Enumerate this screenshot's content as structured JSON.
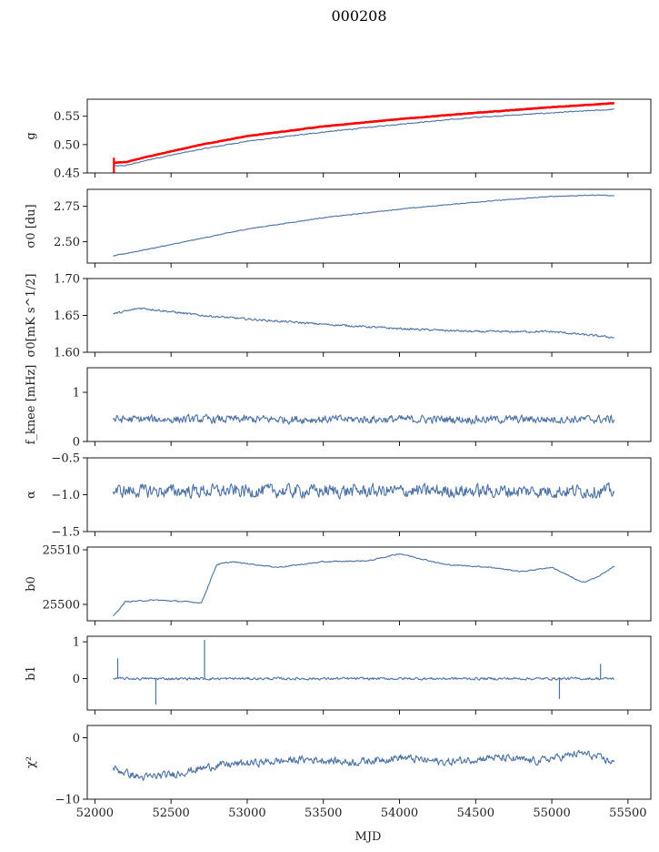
{
  "chart_data": {
    "type": "line",
    "title": "000208",
    "xlabel": "MJD",
    "xlim": [
      51950,
      55650
    ],
    "x_ticks": [
      52000,
      52500,
      53000,
      53500,
      54000,
      54500,
      55000,
      55500
    ],
    "x_start": 52120,
    "x_end": 55410,
    "colors": {
      "main": "#4c72a4",
      "overlay": "#ff0000"
    },
    "panels": [
      {
        "id": "g",
        "ylabel": "g",
        "ylim": [
          0.45,
          0.58
        ],
        "yticks": [
          "0.45",
          "0.50",
          "0.55"
        ],
        "y_tick_values": [
          0.45,
          0.5,
          0.55
        ],
        "series": [
          {
            "role": "main",
            "x": [
              52120,
              52200,
              52400,
              52700,
              53000,
              53500,
              54000,
              54500,
              55000,
              55400
            ],
            "y": [
              0.462,
              0.463,
              0.476,
              0.492,
              0.506,
              0.522,
              0.536,
              0.548,
              0.556,
              0.562
            ]
          },
          {
            "role": "overlay",
            "x": [
              52120,
              52200,
              52400,
              52700,
              53000,
              53500,
              54000,
              54500,
              55000,
              55410
            ],
            "y": [
              0.468,
              0.469,
              0.482,
              0.5,
              0.515,
              0.532,
              0.545,
              0.556,
              0.566,
              0.573
            ]
          }
        ],
        "noise": 0.0012,
        "spike": {
          "x": 52125,
          "low": 0.45,
          "high": 0.477
        }
      },
      {
        "id": "sigma0_du",
        "ylabel": "σ0 [du]",
        "ylim": [
          2.35,
          2.87
        ],
        "yticks": [
          "2.50",
          "2.75"
        ],
        "y_tick_values": [
          2.5,
          2.75
        ],
        "series": [
          {
            "role": "main",
            "x": [
              52120,
              52500,
              53000,
              53500,
              54000,
              54500,
              55000,
              55300,
              55410
            ],
            "y": [
              2.4,
              2.48,
              2.59,
              2.67,
              2.73,
              2.78,
              2.82,
              2.83,
              2.825
            ]
          }
        ],
        "noise": 0.004
      },
      {
        "id": "sigma0_mk",
        "ylabel": "σ0[mK s^1/2]",
        "ylim": [
          1.6,
          1.7
        ],
        "yticks": [
          "1.60",
          "1.65",
          "1.70"
        ],
        "y_tick_values": [
          1.6,
          1.65,
          1.7
        ],
        "series": [
          {
            "role": "main",
            "x": [
              52120,
              52300,
              52700,
              53000,
              53500,
              54000,
              54500,
              55000,
              55410
            ],
            "y": [
              1.652,
              1.66,
              1.65,
              1.645,
              1.638,
              1.632,
              1.628,
              1.628,
              1.62
            ]
          }
        ],
        "noise": 0.002
      },
      {
        "id": "fknee",
        "ylabel": "f_knee [mHz]",
        "ylim": [
          0,
          1.5
        ],
        "yticks": [
          "0",
          "1"
        ],
        "y_tick_values": [
          0,
          1
        ],
        "series": [
          {
            "role": "main",
            "x": [
              52120,
              55410
            ],
            "y": [
              0.45,
              0.45
            ]
          }
        ],
        "noise": 0.12
      },
      {
        "id": "alpha",
        "ylabel": "α",
        "ylim": [
          -1.5,
          -0.5
        ],
        "yticks": [
          "−1.5",
          "−1.0",
          "−0.5"
        ],
        "y_tick_values": [
          -1.5,
          -1.0,
          -0.5
        ],
        "series": [
          {
            "role": "main",
            "x": [
              52120,
              55410
            ],
            "y": [
              -0.95,
              -0.95
            ]
          }
        ],
        "noise": 0.13
      },
      {
        "id": "b0",
        "ylabel": "b0",
        "ylim": [
          25497,
          25510.5
        ],
        "yticks": [
          "25500",
          "25510"
        ],
        "y_tick_values": [
          25500,
          25510
        ],
        "series": [
          {
            "role": "main",
            "x": [
              52120,
              52200,
              52400,
              52600,
              52700,
              52800,
              52900,
              53200,
              53500,
              53800,
              54000,
              54300,
              54600,
              54800,
              55000,
              55200,
              55300,
              55410
            ],
            "y": [
              25497.8,
              25500.5,
              25500.8,
              25500.5,
              25500.3,
              25507.3,
              25507.8,
              25506.8,
              25507.8,
              25508,
              25509.3,
              25507.3,
              25506.8,
              25506,
              25506.8,
              25504,
              25505,
              25507
            ]
          }
        ],
        "noise": 0.15
      },
      {
        "id": "b1",
        "ylabel": "b1",
        "ylim": [
          -0.85,
          1.15
        ],
        "yticks": [
          "0",
          "1"
        ],
        "y_tick_values": [
          0,
          1
        ],
        "series": [
          {
            "role": "main",
            "x": [
              52120,
              55410
            ],
            "y": [
              0,
              0
            ]
          }
        ],
        "noise": 0.05,
        "spikes": [
          {
            "x": 52150,
            "y": 0.55
          },
          {
            "x": 52400,
            "y": -0.7
          },
          {
            "x": 52720,
            "y": 1.05
          },
          {
            "x": 55050,
            "y": -0.55
          },
          {
            "x": 55320,
            "y": 0.4
          }
        ]
      },
      {
        "id": "chi2",
        "ylabel": "χ²",
        "ylim": [
          -10,
          2
        ],
        "yticks": [
          "−10",
          "0"
        ],
        "y_tick_values": [
          -10,
          0
        ],
        "series": [
          {
            "role": "main",
            "x": [
              52120,
              52300,
              52500,
              52800,
              53100,
              53400,
              53700,
              54000,
              54300,
              54600,
              54900,
              55200,
              55410
            ],
            "y": [
              -5,
              -6.5,
              -6,
              -4.5,
              -4,
              -3.5,
              -4,
              -3.2,
              -4,
              -3.2,
              -3.8,
              -2.5,
              -4
            ]
          }
        ],
        "noise": 0.9
      }
    ]
  }
}
